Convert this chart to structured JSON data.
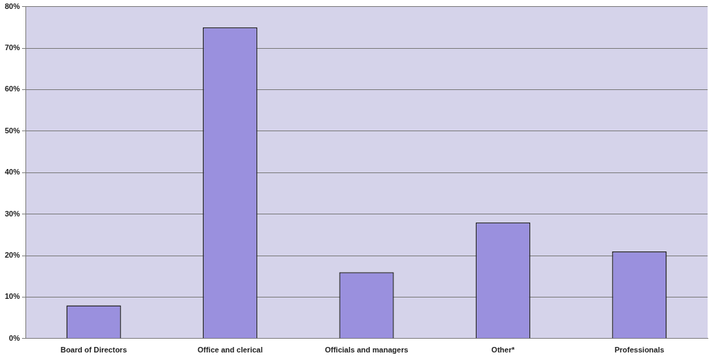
{
  "chart_data": {
    "type": "bar",
    "categories": [
      "Board of Directors",
      "Office and clerical",
      "Officials and managers",
      "Other*",
      "Professionals"
    ],
    "values": [
      8,
      75,
      16,
      28,
      21
    ],
    "color": "#9a90de",
    "ylim": [
      0,
      80
    ],
    "yticks": [
      {
        "value": 0,
        "label": "0%"
      },
      {
        "value": 10,
        "label": "10%"
      },
      {
        "value": 20,
        "label": "20%"
      },
      {
        "value": 30,
        "label": "30%"
      },
      {
        "value": 40,
        "label": "40%"
      },
      {
        "value": 50,
        "label": "50%"
      },
      {
        "value": 60,
        "label": "60%"
      },
      {
        "value": 70,
        "label": "70%"
      },
      {
        "value": 80,
        "label": "80%"
      }
    ],
    "grid": "y",
    "legend": false
  }
}
